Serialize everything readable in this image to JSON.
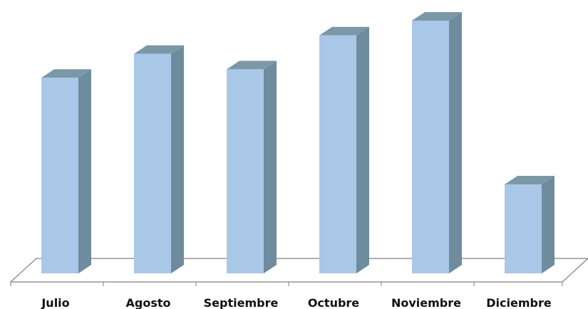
{
  "chart_data": {
    "type": "bar",
    "categories": [
      "Julio",
      "Agosto",
      "Septiembre",
      "Octubre",
      "Noviembre",
      "Diciembre"
    ],
    "series": [
      {
        "values": [
          277,
          311,
          289,
          337,
          358,
          126
        ]
      }
    ],
    "ylim": [
      0,
      360
    ],
    "grid": false,
    "legend": "none",
    "style": "3d-column",
    "colors": {
      "front": "#a9c8e8",
      "side": "#6e8c9e",
      "top": "#7b98a8",
      "floor_line": "#7f7f7f"
    }
  }
}
